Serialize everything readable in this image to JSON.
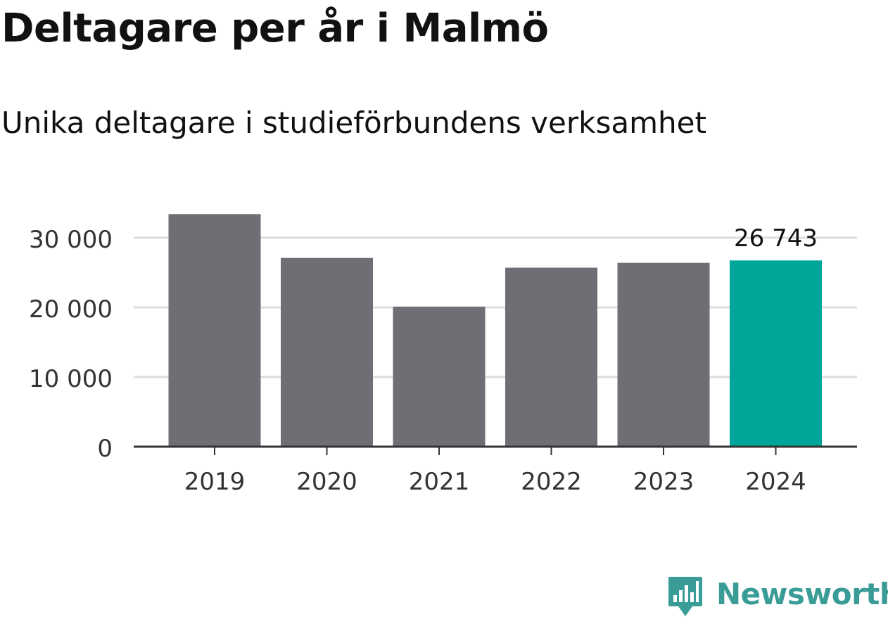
{
  "chart_data": {
    "type": "bar",
    "title": "Deltagare per år i Malmö",
    "subtitle": "Unika deltagare i studieförbundens verksamhet",
    "categories": [
      "2019",
      "2020",
      "2021",
      "2022",
      "2023",
      "2024"
    ],
    "values": [
      33400,
      27100,
      20100,
      25700,
      26400,
      26743
    ],
    "highlight_index": 5,
    "highlight_label": "26 743",
    "ylim": [
      0,
      35000
    ],
    "yticks": [
      0,
      10000,
      20000,
      30000
    ],
    "ytick_labels": [
      "0",
      "10 000",
      "20 000",
      "30 000"
    ],
    "grid": true,
    "xlabel": "",
    "ylabel": ""
  },
  "colors": {
    "bar": "#6f6e74",
    "highlight": "#00a59a",
    "grid": "#dddddd",
    "axis": "#333333",
    "brand": "#3a9c96"
  },
  "brand": {
    "name": "Newsworthy",
    "icon": "newsworthy-logo-icon"
  }
}
